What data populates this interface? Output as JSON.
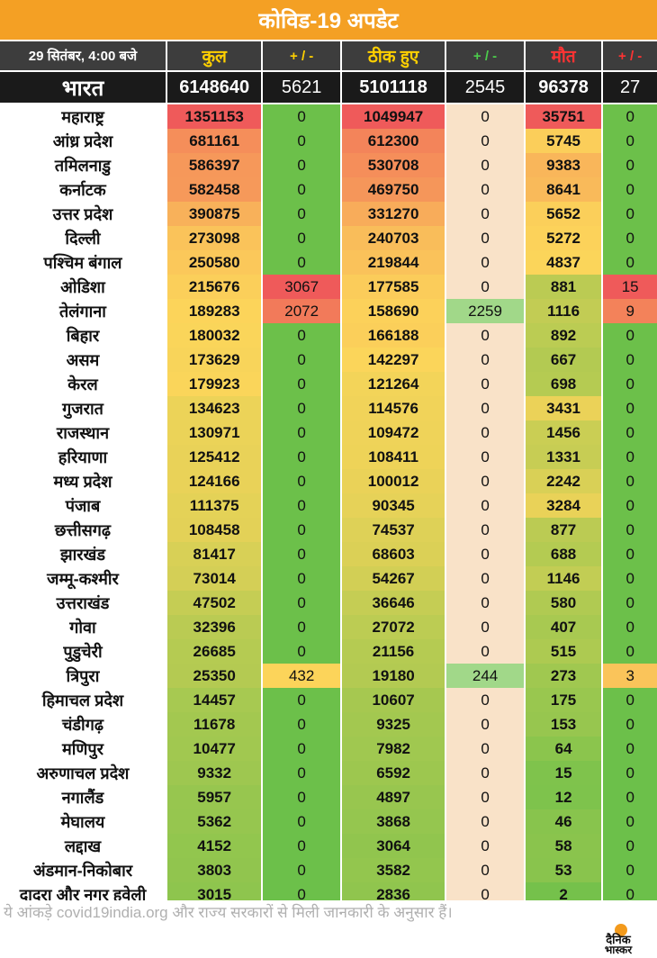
{
  "title": "कोविड-19 अपडेट",
  "headers": {
    "datetime": "29 सितंबर, 4:00 बजे",
    "total": "कुल",
    "total_delta": "+ / -",
    "recovered": "ठीक हुए",
    "recovered_delta": "+ / -",
    "deaths": "मौत",
    "deaths_delta": "+ / -"
  },
  "national": {
    "name": "भारत",
    "total": "6148640",
    "total_delta": "5621",
    "recovered": "5101118",
    "recovered_delta": "2545",
    "deaths": "96378",
    "deaths_delta": "27"
  },
  "states": [
    {
      "name": "महाराष्ट्र",
      "total": "1351153",
      "total_delta": "0",
      "recovered": "1049947",
      "recovered_delta": "0",
      "deaths": "35751",
      "deaths_delta": "0"
    },
    {
      "name": "आंध्र प्रदेश",
      "total": "681161",
      "total_delta": "0",
      "recovered": "612300",
      "recovered_delta": "0",
      "deaths": "5745",
      "deaths_delta": "0"
    },
    {
      "name": "तमिलनाडु",
      "total": "586397",
      "total_delta": "0",
      "recovered": "530708",
      "recovered_delta": "0",
      "deaths": "9383",
      "deaths_delta": "0"
    },
    {
      "name": "कर्नाटक",
      "total": "582458",
      "total_delta": "0",
      "recovered": "469750",
      "recovered_delta": "0",
      "deaths": "8641",
      "deaths_delta": "0"
    },
    {
      "name": "उत्तर प्रदेश",
      "total": "390875",
      "total_delta": "0",
      "recovered": "331270",
      "recovered_delta": "0",
      "deaths": "5652",
      "deaths_delta": "0"
    },
    {
      "name": "दिल्ली",
      "total": "273098",
      "total_delta": "0",
      "recovered": "240703",
      "recovered_delta": "0",
      "deaths": "5272",
      "deaths_delta": "0"
    },
    {
      "name": "पश्चिम बंगाल",
      "total": "250580",
      "total_delta": "0",
      "recovered": "219844",
      "recovered_delta": "0",
      "deaths": "4837",
      "deaths_delta": "0"
    },
    {
      "name": "ओडिशा",
      "total": "215676",
      "total_delta": "3067",
      "recovered": "177585",
      "recovered_delta": "0",
      "deaths": "881",
      "deaths_delta": "15"
    },
    {
      "name": "तेलंगाना",
      "total": "189283",
      "total_delta": "2072",
      "recovered": "158690",
      "recovered_delta": "2259",
      "deaths": "1116",
      "deaths_delta": "9"
    },
    {
      "name": "बिहार",
      "total": "180032",
      "total_delta": "0",
      "recovered": "166188",
      "recovered_delta": "0",
      "deaths": "892",
      "deaths_delta": "0"
    },
    {
      "name": "असम",
      "total": "173629",
      "total_delta": "0",
      "recovered": "142297",
      "recovered_delta": "0",
      "deaths": "667",
      "deaths_delta": "0"
    },
    {
      "name": "केरल",
      "total": "179923",
      "total_delta": "0",
      "recovered": "121264",
      "recovered_delta": "0",
      "deaths": "698",
      "deaths_delta": "0"
    },
    {
      "name": "गुजरात",
      "total": "134623",
      "total_delta": "0",
      "recovered": "114576",
      "recovered_delta": "0",
      "deaths": "3431",
      "deaths_delta": "0"
    },
    {
      "name": "राजस्थान",
      "total": "130971",
      "total_delta": "0",
      "recovered": "109472",
      "recovered_delta": "0",
      "deaths": "1456",
      "deaths_delta": "0"
    },
    {
      "name": "हरियाणा",
      "total": "125412",
      "total_delta": "0",
      "recovered": "108411",
      "recovered_delta": "0",
      "deaths": "1331",
      "deaths_delta": "0"
    },
    {
      "name": "मध्य प्रदेश",
      "total": "124166",
      "total_delta": "0",
      "recovered": "100012",
      "recovered_delta": "0",
      "deaths": "2242",
      "deaths_delta": "0"
    },
    {
      "name": "पंजाब",
      "total": "111375",
      "total_delta": "0",
      "recovered": "90345",
      "recovered_delta": "0",
      "deaths": "3284",
      "deaths_delta": "0"
    },
    {
      "name": "छत्तीसगढ़",
      "total": "108458",
      "total_delta": "0",
      "recovered": "74537",
      "recovered_delta": "0",
      "deaths": "877",
      "deaths_delta": "0"
    },
    {
      "name": "झारखंड",
      "total": "81417",
      "total_delta": "0",
      "recovered": "68603",
      "recovered_delta": "0",
      "deaths": "688",
      "deaths_delta": "0"
    },
    {
      "name": "जम्मू-कश्मीर",
      "total": "73014",
      "total_delta": "0",
      "recovered": "54267",
      "recovered_delta": "0",
      "deaths": "1146",
      "deaths_delta": "0"
    },
    {
      "name": "उत्तराखंड",
      "total": "47502",
      "total_delta": "0",
      "recovered": "36646",
      "recovered_delta": "0",
      "deaths": "580",
      "deaths_delta": "0"
    },
    {
      "name": "गोवा",
      "total": "32396",
      "total_delta": "0",
      "recovered": "27072",
      "recovered_delta": "0",
      "deaths": "407",
      "deaths_delta": "0"
    },
    {
      "name": "पुडुचेरी",
      "total": "26685",
      "total_delta": "0",
      "recovered": "21156",
      "recovered_delta": "0",
      "deaths": "515",
      "deaths_delta": "0"
    },
    {
      "name": "त्रिपुरा",
      "total": "25350",
      "total_delta": "432",
      "recovered": "19180",
      "recovered_delta": "244",
      "deaths": "273",
      "deaths_delta": "3"
    },
    {
      "name": "हिमाचल प्रदेश",
      "total": "14457",
      "total_delta": "0",
      "recovered": "10607",
      "recovered_delta": "0",
      "deaths": "175",
      "deaths_delta": "0"
    },
    {
      "name": "चंडीगढ़",
      "total": "11678",
      "total_delta": "0",
      "recovered": "9325",
      "recovered_delta": "0",
      "deaths": "153",
      "deaths_delta": "0"
    },
    {
      "name": "मणिपुर",
      "total": "10477",
      "total_delta": "0",
      "recovered": "7982",
      "recovered_delta": "0",
      "deaths": "64",
      "deaths_delta": "0"
    },
    {
      "name": "अरुणाचल प्रदेश",
      "total": "9332",
      "total_delta": "0",
      "recovered": "6592",
      "recovered_delta": "0",
      "deaths": "15",
      "deaths_delta": "0"
    },
    {
      "name": "नगालैंड",
      "total": "5957",
      "total_delta": "0",
      "recovered": "4897",
      "recovered_delta": "0",
      "deaths": "12",
      "deaths_delta": "0"
    },
    {
      "name": "मेघालय",
      "total": "5362",
      "total_delta": "0",
      "recovered": "3868",
      "recovered_delta": "0",
      "deaths": "46",
      "deaths_delta": "0"
    },
    {
      "name": "लद्दाख",
      "total": "4152",
      "total_delta": "0",
      "recovered": "3064",
      "recovered_delta": "0",
      "deaths": "58",
      "deaths_delta": "0"
    },
    {
      "name": "अंडमान-निकोबार",
      "total": "3803",
      "total_delta": "0",
      "recovered": "3582",
      "recovered_delta": "0",
      "deaths": "53",
      "deaths_delta": "0"
    },
    {
      "name": "दादरा और नगर हवेली",
      "total": "3015",
      "total_delta": "0",
      "recovered": "2836",
      "recovered_delta": "0",
      "deaths": "2",
      "deaths_delta": "0"
    }
  ],
  "footer": {
    "note": "ये आंकड़े covid19india.org और राज्य सरकारों से मिली जानकारी के अनुसार हैं।",
    "logo_line1": "दैनिक",
    "logo_line2": "भास्कर"
  },
  "colors": {
    "title_bg": "#f4a024",
    "header_bg": "#3d3d3d",
    "national_bg": "#1a1a1a",
    "scale_low": "#6cc04a",
    "scale_mid": "#fcd55a",
    "scale_high": "#ef5a5a",
    "delta_zero": "#f9e2c8"
  }
}
